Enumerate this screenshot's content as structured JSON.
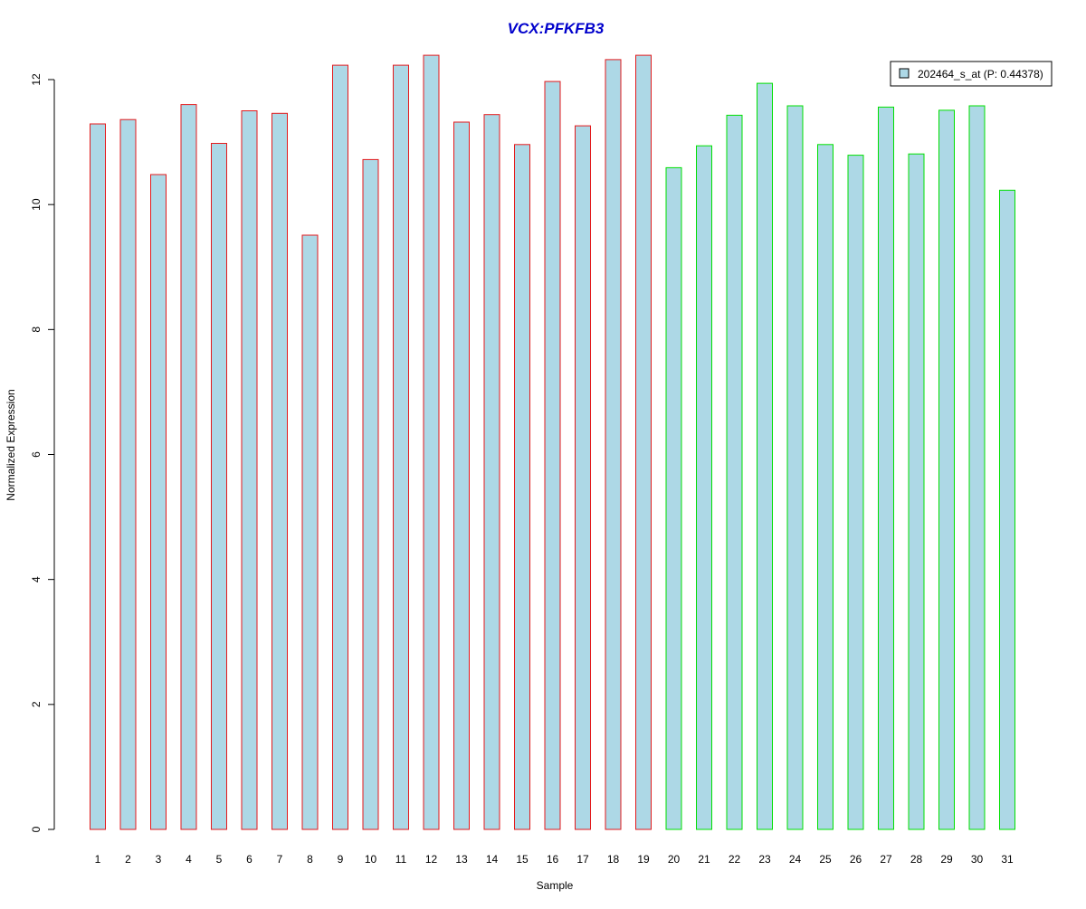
{
  "chart_data": {
    "type": "bar",
    "title": "VCX:PFKFB3",
    "xlabel": "Sample",
    "ylabel": "Normalized Expression",
    "categories": [
      "1",
      "2",
      "3",
      "4",
      "5",
      "6",
      "7",
      "8",
      "9",
      "10",
      "11",
      "12",
      "13",
      "14",
      "15",
      "16",
      "17",
      "18",
      "19",
      "20",
      "21",
      "22",
      "23",
      "24",
      "25",
      "26",
      "27",
      "28",
      "29",
      "30",
      "31"
    ],
    "series": [
      {
        "name": "202464_s_at (P: 0.44378)",
        "values": [
          11.29,
          11.36,
          10.48,
          11.6,
          10.98,
          11.5,
          11.46,
          9.51,
          12.23,
          10.72,
          12.23,
          12.39,
          11.32,
          11.44,
          10.96,
          11.97,
          11.26,
          12.32,
          12.39,
          10.59,
          10.94,
          11.43,
          11.94,
          11.58,
          10.96,
          10.79,
          11.56,
          10.81,
          11.51,
          11.58,
          10.23
        ]
      }
    ],
    "group_outline_colors": [
      "#e31a1c",
      "#e31a1c",
      "#e31a1c",
      "#e31a1c",
      "#e31a1c",
      "#e31a1c",
      "#e31a1c",
      "#e31a1c",
      "#e31a1c",
      "#e31a1c",
      "#e31a1c",
      "#e31a1c",
      "#e31a1c",
      "#e31a1c",
      "#e31a1c",
      "#e31a1c",
      "#e31a1c",
      "#e31a1c",
      "#e31a1c",
      "#00e000",
      "#00e000",
      "#00e000",
      "#00e000",
      "#00e000",
      "#00e000",
      "#00e000",
      "#00e000",
      "#00e000",
      "#00e000",
      "#00e000",
      "#00e000"
    ],
    "bar_fill_color": "#add8e6",
    "title_color": "#0000cc",
    "ylim": [
      0,
      12
    ],
    "yticks": [
      0,
      2,
      4,
      6,
      8,
      10,
      12
    ],
    "legend": {
      "label": "202464_s_at (P: 0.44378)",
      "placement": "top-right"
    },
    "grid": false
  }
}
